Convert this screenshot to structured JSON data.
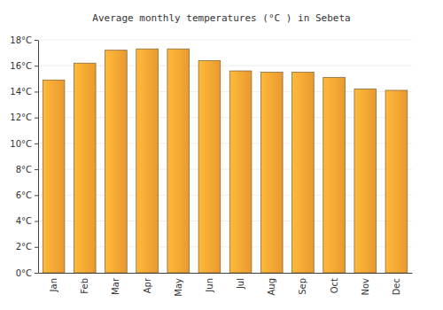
{
  "chart_data": {
    "type": "bar",
    "title": "Average monthly temperatures (°C ) in Sebeta",
    "categories": [
      "Jan",
      "Feb",
      "Mar",
      "Apr",
      "May",
      "Jun",
      "Jul",
      "Aug",
      "Sep",
      "Oct",
      "Nov",
      "Dec"
    ],
    "values": [
      14.9,
      16.2,
      17.2,
      17.3,
      17.3,
      16.4,
      15.6,
      15.5,
      15.5,
      15.1,
      14.2,
      14.1
    ],
    "color": "#ffa733",
    "ylim": [
      0,
      18
    ],
    "yticks": [
      {
        "value": 0,
        "label": "0°C"
      },
      {
        "value": 2,
        "label": "2°C"
      },
      {
        "value": 4,
        "label": "4°C"
      },
      {
        "value": 6,
        "label": "6°C"
      },
      {
        "value": 8,
        "label": "8°C"
      },
      {
        "value": 10,
        "label": "10°C"
      },
      {
        "value": 12,
        "label": "12°C"
      },
      {
        "value": 14,
        "label": "14°C"
      },
      {
        "value": 16,
        "label": "16°C"
      },
      {
        "value": 18,
        "label": "18°C"
      }
    ],
    "grid": true
  }
}
